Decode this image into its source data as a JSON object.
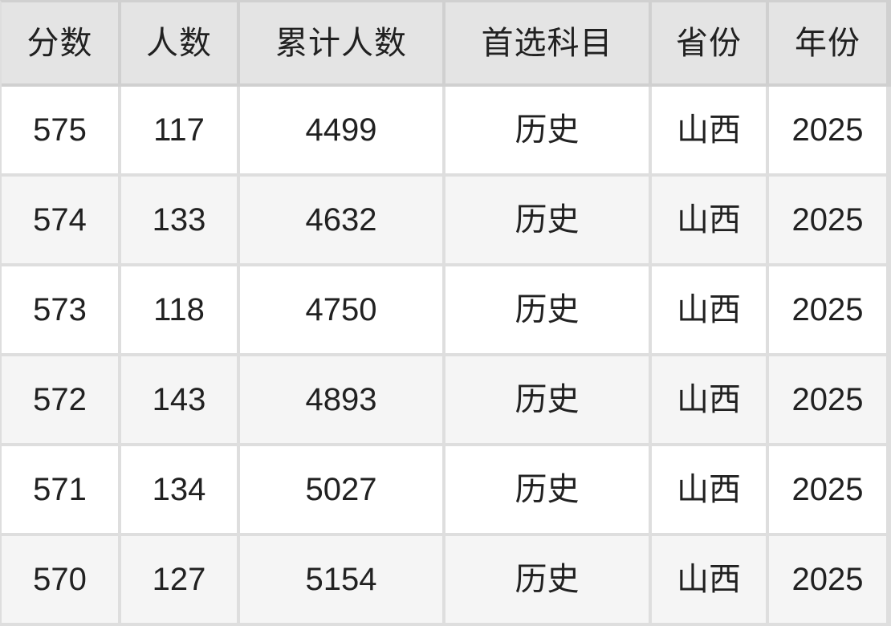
{
  "table": {
    "title": "score-distribution-table",
    "columns": [
      {
        "key": "score",
        "label": "分数"
      },
      {
        "key": "count",
        "label": "人数"
      },
      {
        "key": "cumulative",
        "label": "累计人数"
      },
      {
        "key": "subject",
        "label": "首选科目"
      },
      {
        "key": "province",
        "label": "省份"
      },
      {
        "key": "year",
        "label": "年份"
      }
    ],
    "rows": [
      [
        "575",
        "117",
        "4499",
        "历史",
        "山西",
        "2025"
      ],
      [
        "574",
        "133",
        "4632",
        "历史",
        "山西",
        "2025"
      ],
      [
        "573",
        "118",
        "4750",
        "历史",
        "山西",
        "2025"
      ],
      [
        "572",
        "143",
        "4893",
        "历史",
        "山西",
        "2025"
      ],
      [
        "571",
        "134",
        "5027",
        "历史",
        "山西",
        "2025"
      ],
      [
        "570",
        "127",
        "5154",
        "历史",
        "山西",
        "2025"
      ]
    ]
  },
  "colors": {
    "header_bg": "#e4e4e4",
    "stripe_bg": "#f5f5f5",
    "row_bg": "#ffffff",
    "grid_line": "#dedede",
    "grid_line_dark": "#d0d0d0",
    "text": "#212121"
  }
}
